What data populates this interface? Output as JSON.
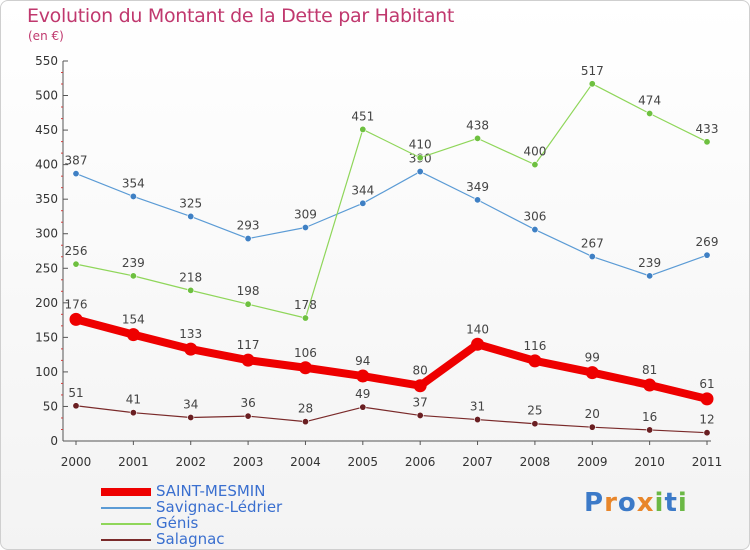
{
  "header": {
    "title": "Evolution du Montant de la Dette par Habitant",
    "subtitle": "(en €)"
  },
  "logo": {
    "letters": [
      {
        "char": "P",
        "color": "#3c7ac8"
      },
      {
        "char": "r",
        "color": "#e8862a"
      },
      {
        "char": "o",
        "color": "#3c7ac8"
      },
      {
        "char": "x",
        "color": "#e8862a"
      },
      {
        "char": "i",
        "color": "#6bb845"
      },
      {
        "char": "t",
        "color": "#3c7ac8"
      },
      {
        "char": "i",
        "color": "#6bb845"
      }
    ]
  },
  "chart_data": {
    "type": "line",
    "title": "Evolution du Montant de la Dette par Habitant",
    "subtitle": "(en €)",
    "x": [
      "2000",
      "2001",
      "2002",
      "2003",
      "2004",
      "2005",
      "2006",
      "2007",
      "2008",
      "2009",
      "2010",
      "2011"
    ],
    "ylim": [
      0,
      550
    ],
    "yticks": [
      0,
      50,
      100,
      150,
      200,
      250,
      300,
      350,
      400,
      450,
      500,
      550
    ],
    "grid": false,
    "legend_position": "bottom-left",
    "series": [
      {
        "name": "Savignac-Lédrier",
        "color": "#5b9bd5",
        "marker": "#3f80c4",
        "width": 1.2,
        "values": [
          387,
          354,
          325,
          293,
          309,
          344,
          390,
          349,
          306,
          267,
          239,
          269
        ]
      },
      {
        "name": "Génis",
        "color": "#8fd65a",
        "marker": "#6ec040",
        "width": 1.2,
        "values": [
          256,
          239,
          218,
          198,
          178,
          451,
          410,
          438,
          400,
          517,
          474,
          433
        ]
      },
      {
        "name": "Salagnac",
        "color": "#7a2a2a",
        "marker": "#6a1f22",
        "width": 1.2,
        "values": [
          51,
          41,
          34,
          36,
          28,
          49,
          37,
          31,
          25,
          20,
          16,
          12
        ]
      },
      {
        "name": "SAINT-MESMIN",
        "color": "#ee0000",
        "marker": "#ee0000",
        "width": 8,
        "values": [
          176,
          154,
          133,
          117,
          106,
          94,
          80,
          140,
          116,
          99,
          81,
          61
        ]
      }
    ],
    "legend_order": [
      "SAINT-MESMIN",
      "Savignac-Lédrier",
      "Génis",
      "Salagnac"
    ]
  }
}
